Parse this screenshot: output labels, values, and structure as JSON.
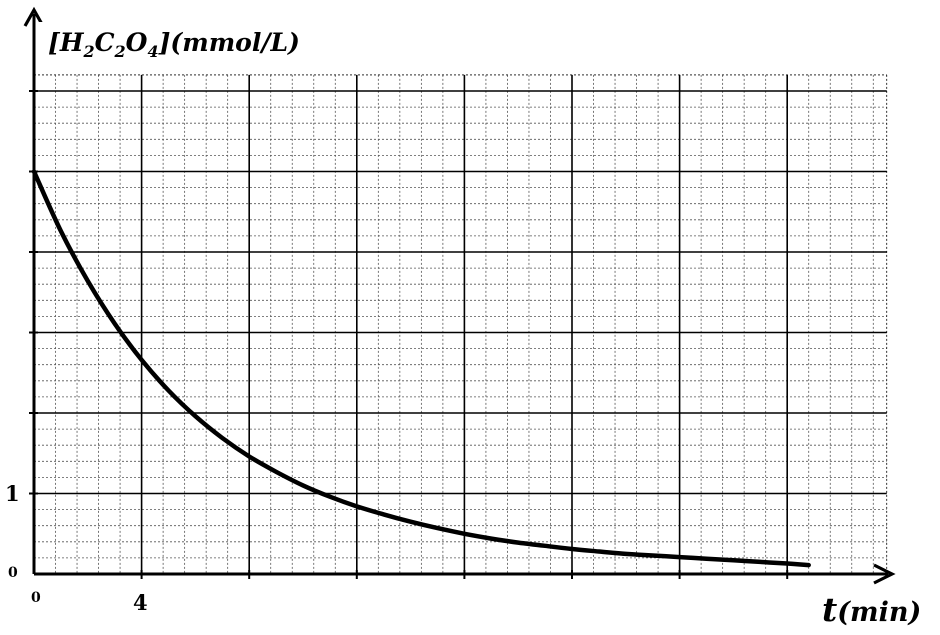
{
  "chart_data": {
    "type": "line",
    "ylabel_parts": [
      "[",
      "H",
      "2",
      "C",
      "2",
      "O",
      "4",
      "](mmol/L)"
    ],
    "xlabel_parts": [
      "t",
      "(min)"
    ],
    "x_origin_label": "0",
    "y_origin_label": "0",
    "x_tick_labels": [
      {
        "value": 4,
        "label": "4"
      }
    ],
    "y_tick_labels": [
      {
        "value": 1,
        "label": "1"
      }
    ],
    "xlim": [
      0,
      31.7
    ],
    "ylim": [
      0,
      6.2
    ],
    "grid": true,
    "grid_major_x_step": 4,
    "grid_minor_x_step": 0.8,
    "grid_major_y_step": 1,
    "grid_minor_y_step": 0.2,
    "series": [
      {
        "color": "#000000",
        "x": [
          0,
          1,
          2,
          3,
          4,
          5,
          6,
          7,
          8,
          9,
          10,
          11,
          12,
          13,
          14,
          15,
          16,
          17,
          18,
          19,
          20,
          21,
          22,
          23,
          24,
          25,
          26,
          27,
          28,
          28.8
        ],
        "y": [
          5.0,
          4.26,
          3.64,
          3.11,
          2.66,
          2.28,
          1.96,
          1.69,
          1.46,
          1.27,
          1.1,
          0.96,
          0.84,
          0.74,
          0.65,
          0.57,
          0.5,
          0.44,
          0.39,
          0.35,
          0.31,
          0.28,
          0.25,
          0.23,
          0.21,
          0.19,
          0.17,
          0.15,
          0.13,
          0.11
        ]
      }
    ]
  }
}
